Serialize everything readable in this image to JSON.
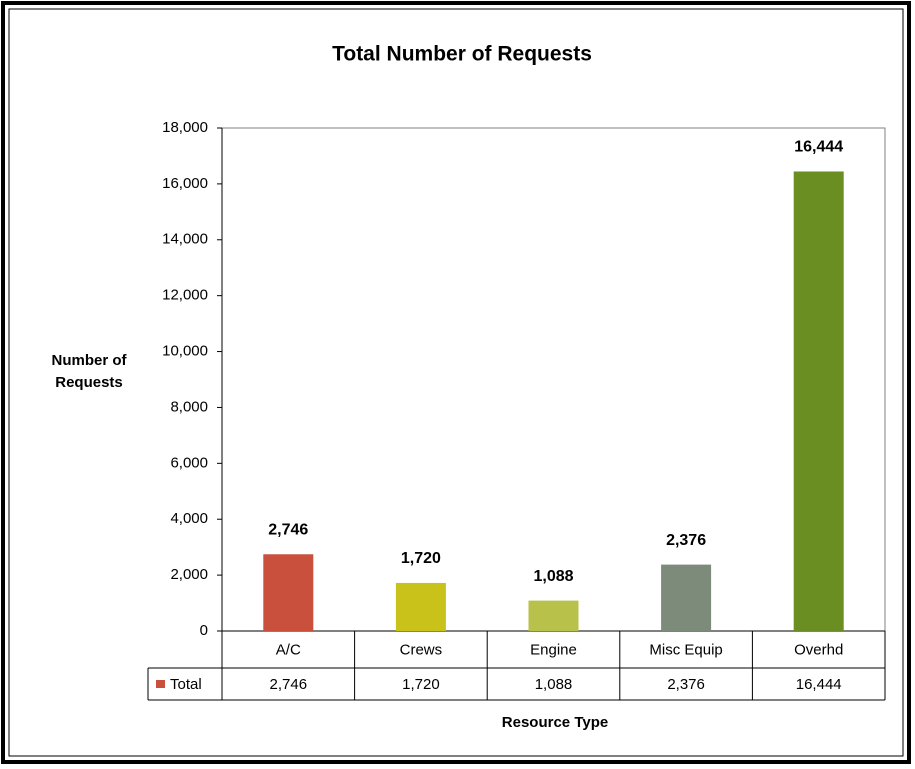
{
  "chart_data": {
    "type": "bar",
    "title": "Total Number of Requests",
    "y_axis_label": "Number of Requests",
    "x_axis_label": "Resource Type",
    "categories": [
      "A/C",
      "Crews",
      "Engine",
      "Misc Equip",
      "Overhd"
    ],
    "series": [
      {
        "name": "Total",
        "colors": [
          "#c8503c",
          "#c9c21a",
          "#b8c24a",
          "#7d8c7a",
          "#6b8e23"
        ],
        "values": [
          2746,
          1720,
          1088,
          2376,
          16444
        ],
        "value_labels": [
          "2,746",
          "1,720",
          "1,088",
          "2,376",
          "16,444"
        ]
      }
    ],
    "ylim": [
      0,
      18000
    ],
    "yticks": [
      0,
      {
        "value": 2000,
        "label": "2,000"
      },
      {
        "value": 4000,
        "label": "4,000"
      },
      {
        "value": 6000,
        "label": "6,000"
      },
      {
        "value": 8000,
        "label": "8,000"
      },
      {
        "value": 10000,
        "label": "10,000"
      },
      {
        "value": 12000,
        "label": "12,000"
      },
      {
        "value": 14000,
        "label": "14,000"
      },
      {
        "value": 16000,
        "label": "16,000"
      },
      {
        "value": 18000,
        "label": "18,000"
      }
    ]
  }
}
